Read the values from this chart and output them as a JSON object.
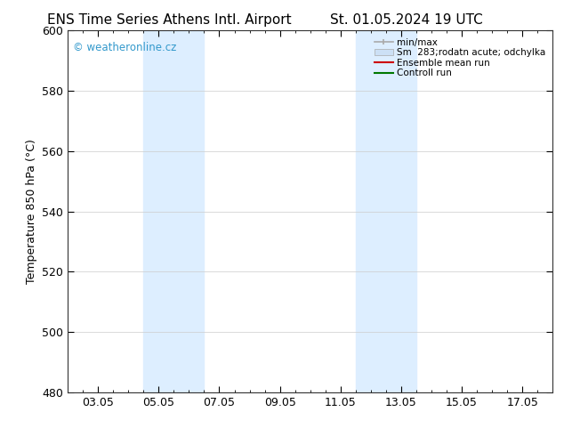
{
  "title_left": "ENS Time Series Athens Intl. Airport",
  "title_right": "St. 01.05.2024 19 UTC",
  "ylabel": "Temperature 850 hPa (°C)",
  "ylim": [
    480,
    600
  ],
  "yticks": [
    480,
    500,
    520,
    540,
    560,
    580,
    600
  ],
  "xtick_labels": [
    "03.05",
    "05.05",
    "07.05",
    "09.05",
    "11.05",
    "13.05",
    "15.05",
    "17.05"
  ],
  "xtick_positions": [
    2,
    4,
    6,
    8,
    10,
    12,
    14,
    16
  ],
  "xlim": [
    1,
    17
  ],
  "shaded_regions": [
    {
      "x_start": 3.5,
      "x_end": 5.5
    },
    {
      "x_start": 10.5,
      "x_end": 12.5
    }
  ],
  "shaded_color": "#ddeeff",
  "bg_color": "#ffffff",
  "watermark_text": "© weatheronline.cz",
  "watermark_color": "#3399cc",
  "legend_labels": [
    "min/max",
    "Sm  283;rodatn acute; odchylka",
    "Ensemble mean run",
    "Controll run"
  ],
  "legend_colors_line": [
    "#999999",
    "#bbccdd",
    "#cc0000",
    "#007700"
  ],
  "title_fontsize": 11,
  "axis_fontsize": 9,
  "tick_fontsize": 9
}
